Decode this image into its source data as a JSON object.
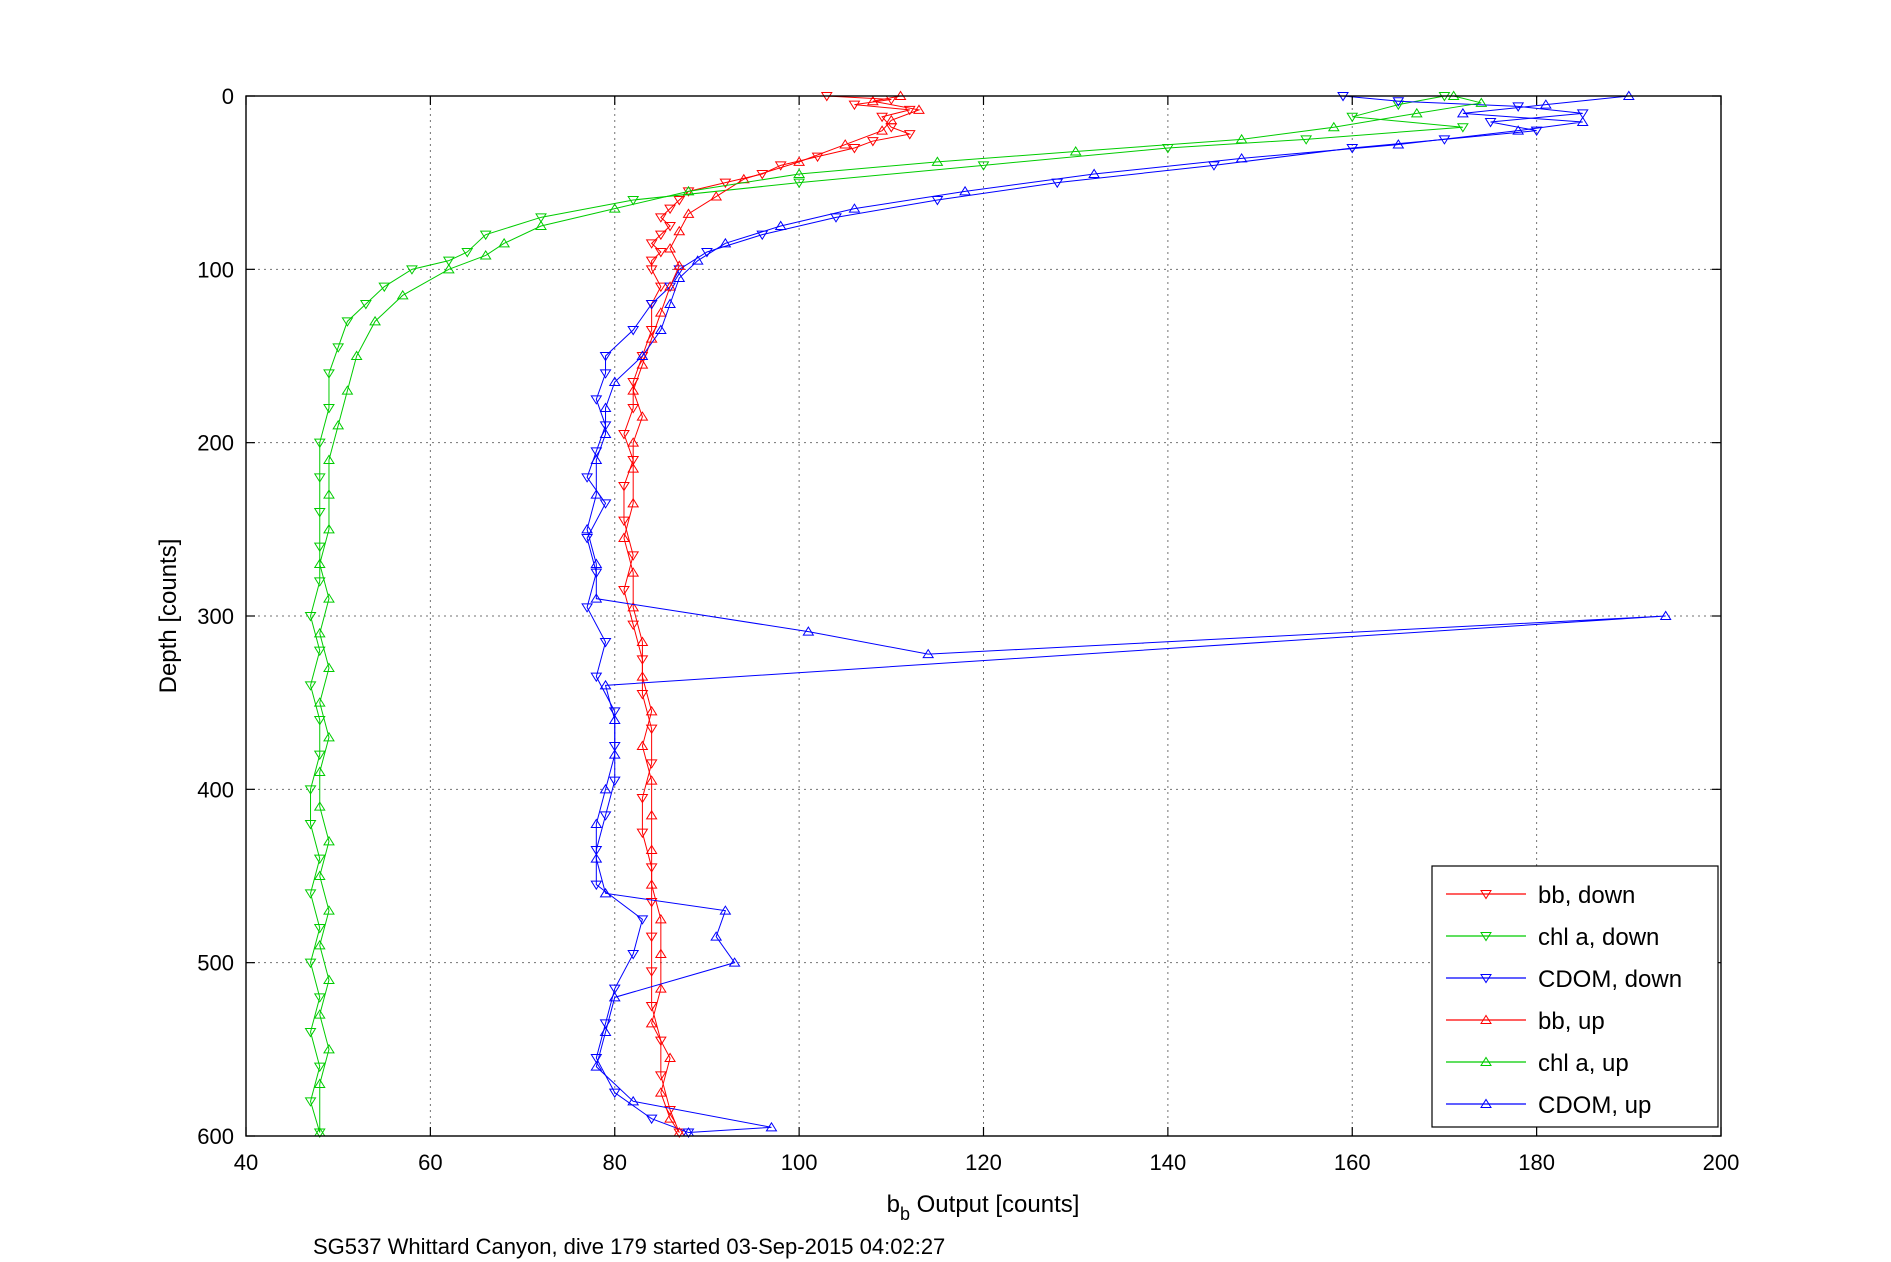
{
  "chart_data": {
    "type": "scatter",
    "title": "",
    "xlabel_main": "b",
    "xlabel_sub": "b",
    "xlabel_rest": " Output [counts]",
    "ylabel": "Depth [counts]",
    "caption": "SG537 Whittard Canyon, dive 179 started 03-Sep-2015 04:02:27",
    "xlim": [
      40,
      200
    ],
    "ylim": [
      0,
      600
    ],
    "y_reversed": true,
    "xticks": [
      40,
      60,
      80,
      100,
      120,
      140,
      160,
      180,
      200
    ],
    "yticks": [
      0,
      100,
      200,
      300,
      400,
      500,
      600
    ],
    "xtick_labels": [
      "40",
      "60",
      "80",
      "100",
      "120",
      "140",
      "160",
      "180",
      "200"
    ],
    "ytick_labels": [
      "0",
      "100",
      "200",
      "300",
      "400",
      "500",
      "600"
    ],
    "grid": true,
    "legend_position": "bottom-right",
    "series": [
      {
        "name": "bb, down",
        "color": "#ff0000",
        "marker": "triangle-down",
        "points": [
          [
            103,
            0
          ],
          [
            110,
            2
          ],
          [
            106,
            5
          ],
          [
            112,
            8
          ],
          [
            109,
            12
          ],
          [
            110,
            18
          ],
          [
            112,
            22
          ],
          [
            108,
            26
          ],
          [
            106,
            30
          ],
          [
            102,
            35
          ],
          [
            98,
            40
          ],
          [
            96,
            45
          ],
          [
            92,
            50
          ],
          [
            88,
            55
          ],
          [
            87,
            60
          ],
          [
            86,
            65
          ],
          [
            85,
            70
          ],
          [
            86,
            75
          ],
          [
            85,
            80
          ],
          [
            84,
            85
          ],
          [
            85,
            90
          ],
          [
            84,
            95
          ],
          [
            84,
            100
          ],
          [
            85,
            110
          ],
          [
            84,
            120
          ],
          [
            84,
            135
          ],
          [
            83,
            150
          ],
          [
            82,
            165
          ],
          [
            82,
            180
          ],
          [
            81,
            195
          ],
          [
            82,
            210
          ],
          [
            81,
            225
          ],
          [
            81,
            245
          ],
          [
            82,
            265
          ],
          [
            81,
            285
          ],
          [
            82,
            305
          ],
          [
            83,
            325
          ],
          [
            83,
            345
          ],
          [
            84,
            365
          ],
          [
            84,
            385
          ],
          [
            83,
            405
          ],
          [
            83,
            425
          ],
          [
            84,
            445
          ],
          [
            84,
            465
          ],
          [
            84,
            485
          ],
          [
            84,
            505
          ],
          [
            84,
            525
          ],
          [
            85,
            545
          ],
          [
            85,
            565
          ],
          [
            86,
            585
          ],
          [
            87,
            598
          ]
        ]
      },
      {
        "name": "chl a, down",
        "color": "#00cc00",
        "marker": "triangle-down",
        "points": [
          [
            170,
            0
          ],
          [
            165,
            5
          ],
          [
            160,
            12
          ],
          [
            172,
            18
          ],
          [
            155,
            25
          ],
          [
            140,
            30
          ],
          [
            120,
            40
          ],
          [
            100,
            50
          ],
          [
            82,
            60
          ],
          [
            72,
            70
          ],
          [
            66,
            80
          ],
          [
            64,
            90
          ],
          [
            62,
            95
          ],
          [
            58,
            100
          ],
          [
            55,
            110
          ],
          [
            53,
            120
          ],
          [
            51,
            130
          ],
          [
            50,
            145
          ],
          [
            49,
            160
          ],
          [
            49,
            180
          ],
          [
            48,
            200
          ],
          [
            48,
            220
          ],
          [
            48,
            240
          ],
          [
            48,
            260
          ],
          [
            48,
            280
          ],
          [
            47,
            300
          ],
          [
            48,
            320
          ],
          [
            47,
            340
          ],
          [
            48,
            360
          ],
          [
            48,
            380
          ],
          [
            47,
            400
          ],
          [
            47,
            420
          ],
          [
            48,
            440
          ],
          [
            47,
            460
          ],
          [
            48,
            480
          ],
          [
            47,
            500
          ],
          [
            48,
            520
          ],
          [
            47,
            540
          ],
          [
            48,
            560
          ],
          [
            47,
            580
          ],
          [
            48,
            598
          ]
        ]
      },
      {
        "name": "CDOM, down",
        "color": "#0000ff",
        "marker": "triangle-down",
        "points": [
          [
            159,
            0
          ],
          [
            165,
            3
          ],
          [
            178,
            6
          ],
          [
            185,
            10
          ],
          [
            175,
            15
          ],
          [
            180,
            20
          ],
          [
            170,
            25
          ],
          [
            160,
            30
          ],
          [
            145,
            40
          ],
          [
            128,
            50
          ],
          [
            115,
            60
          ],
          [
            104,
            70
          ],
          [
            96,
            80
          ],
          [
            90,
            90
          ],
          [
            87,
            100
          ],
          [
            86,
            110
          ],
          [
            84,
            120
          ],
          [
            82,
            135
          ],
          [
            79,
            150
          ],
          [
            79,
            160
          ],
          [
            78,
            175
          ],
          [
            79,
            190
          ],
          [
            78,
            205
          ],
          [
            77,
            220
          ],
          [
            79,
            235
          ],
          [
            77,
            255
          ],
          [
            78,
            275
          ],
          [
            77,
            295
          ],
          [
            79,
            315
          ],
          [
            78,
            335
          ],
          [
            80,
            355
          ],
          [
            80,
            375
          ],
          [
            80,
            395
          ],
          [
            79,
            415
          ],
          [
            78,
            435
          ],
          [
            78,
            455
          ],
          [
            83,
            475
          ],
          [
            82,
            495
          ],
          [
            80,
            515
          ],
          [
            79,
            535
          ],
          [
            78,
            555
          ],
          [
            80,
            575
          ],
          [
            84,
            590
          ],
          [
            88,
            598
          ]
        ]
      },
      {
        "name": "bb, up",
        "color": "#ff0000",
        "marker": "triangle-up",
        "points": [
          [
            111,
            0
          ],
          [
            108,
            3
          ],
          [
            113,
            8
          ],
          [
            110,
            14
          ],
          [
            109,
            20
          ],
          [
            105,
            28
          ],
          [
            100,
            38
          ],
          [
            94,
            48
          ],
          [
            91,
            58
          ],
          [
            88,
            68
          ],
          [
            87,
            78
          ],
          [
            86,
            88
          ],
          [
            87,
            98
          ],
          [
            86,
            110
          ],
          [
            85,
            125
          ],
          [
            84,
            140
          ],
          [
            83,
            155
          ],
          [
            82,
            170
          ],
          [
            83,
            185
          ],
          [
            82,
            200
          ],
          [
            82,
            215
          ],
          [
            82,
            235
          ],
          [
            81,
            255
          ],
          [
            82,
            275
          ],
          [
            82,
            295
          ],
          [
            83,
            315
          ],
          [
            83,
            335
          ],
          [
            84,
            355
          ],
          [
            83,
            375
          ],
          [
            84,
            395
          ],
          [
            84,
            415
          ],
          [
            84,
            435
          ],
          [
            84,
            455
          ],
          [
            85,
            475
          ],
          [
            85,
            495
          ],
          [
            85,
            515
          ],
          [
            84,
            535
          ],
          [
            86,
            555
          ],
          [
            85,
            575
          ],
          [
            86,
            590
          ],
          [
            87,
            598
          ]
        ]
      },
      {
        "name": "chl a, up",
        "color": "#00cc00",
        "marker": "triangle-up",
        "points": [
          [
            171,
            0
          ],
          [
            174,
            4
          ],
          [
            167,
            10
          ],
          [
            158,
            18
          ],
          [
            148,
            25
          ],
          [
            130,
            32
          ],
          [
            115,
            38
          ],
          [
            100,
            45
          ],
          [
            88,
            55
          ],
          [
            80,
            65
          ],
          [
            72,
            75
          ],
          [
            68,
            85
          ],
          [
            66,
            92
          ],
          [
            62,
            100
          ],
          [
            57,
            115
          ],
          [
            54,
            130
          ],
          [
            52,
            150
          ],
          [
            51,
            170
          ],
          [
            50,
            190
          ],
          [
            49,
            210
          ],
          [
            49,
            230
          ],
          [
            49,
            250
          ],
          [
            48,
            270
          ],
          [
            49,
            290
          ],
          [
            48,
            310
          ],
          [
            49,
            330
          ],
          [
            48,
            350
          ],
          [
            49,
            370
          ],
          [
            48,
            390
          ],
          [
            48,
            410
          ],
          [
            49,
            430
          ],
          [
            48,
            450
          ],
          [
            49,
            470
          ],
          [
            48,
            490
          ],
          [
            49,
            510
          ],
          [
            48,
            530
          ],
          [
            49,
            550
          ],
          [
            48,
            570
          ],
          [
            48,
            598
          ]
        ]
      },
      {
        "name": "CDOM, up",
        "color": "#0000ff",
        "marker": "triangle-up",
        "points": [
          [
            190,
            0
          ],
          [
            181,
            5
          ],
          [
            172,
            10
          ],
          [
            185,
            15
          ],
          [
            178,
            20
          ],
          [
            165,
            28
          ],
          [
            148,
            36
          ],
          [
            132,
            45
          ],
          [
            118,
            55
          ],
          [
            106,
            65
          ],
          [
            98,
            75
          ],
          [
            92,
            85
          ],
          [
            89,
            95
          ],
          [
            87,
            105
          ],
          [
            86,
            120
          ],
          [
            85,
            135
          ],
          [
            83,
            150
          ],
          [
            80,
            165
          ],
          [
            79,
            180
          ],
          [
            79,
            195
          ],
          [
            78,
            210
          ],
          [
            78,
            230
          ],
          [
            77,
            250
          ],
          [
            78,
            270
          ],
          [
            78,
            290
          ],
          [
            101,
            309
          ],
          [
            114,
            322
          ],
          [
            194,
            300
          ],
          [
            79,
            340
          ],
          [
            80,
            360
          ],
          [
            80,
            380
          ],
          [
            79,
            400
          ],
          [
            78,
            420
          ],
          [
            78,
            440
          ],
          [
            79,
            460
          ],
          [
            92,
            470
          ],
          [
            91,
            485
          ],
          [
            93,
            500
          ],
          [
            80,
            520
          ],
          [
            79,
            540
          ],
          [
            78,
            560
          ],
          [
            82,
            580
          ],
          [
            97,
            595
          ],
          [
            88,
            598
          ]
        ]
      }
    ]
  }
}
